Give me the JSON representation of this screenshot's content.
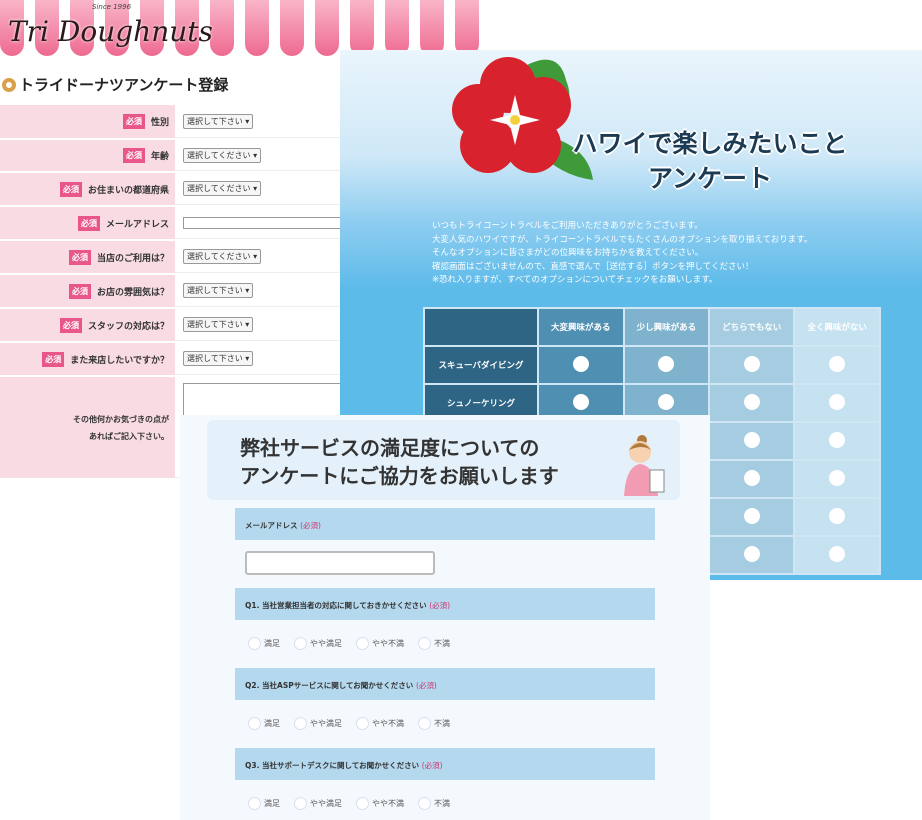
{
  "doughnut": {
    "logo": "Tri Doughnuts",
    "since": "Since 1996",
    "title": "トライドーナツアンケート登録",
    "required": "必須",
    "rows": [
      {
        "label": "性別",
        "value": "選択して下さい"
      },
      {
        "label": "年齢",
        "value": "選択してください"
      },
      {
        "label": "お住まいの都道府県",
        "value": "選択してください"
      },
      {
        "label": "メールアドレス",
        "value": ""
      },
      {
        "label": "当店のご利用は？",
        "value": "選択してください"
      },
      {
        "label": "お店の雰囲気は？",
        "value": "選択して下さい"
      },
      {
        "label": "スタッフの対応は？",
        "value": "選択して下さい"
      },
      {
        "label": "また来店したいですか？",
        "value": "選択して下さい"
      }
    ],
    "comment_label_1": "その他何かお気づきの点が",
    "comment_label_2": "あればご記入下さい。"
  },
  "hawaii": {
    "title_1": "ハワイで楽しみたいこと",
    "title_2": "アンケート",
    "intro": [
      "いつもトライコーントラベルをご利用いただきありがとうございます。",
      "大変人気のハワイですが、トライコーントラベルでもたくさんのオプションを取り揃えております。",
      "そんなオプションに皆さまがどの位興味をお持ちかを教えてください。",
      "確認画面はございませんので、直感で選んで［送信する］ボタンを押してください！",
      "※恐れ入りますが、すべてのオプションについてチェックをお願いします。"
    ],
    "columns": [
      "大変興味がある",
      "少し興味がある",
      "どちらでもない",
      "全く興味がない"
    ],
    "rows": [
      "スキューバダイビング",
      "シュノーケリング",
      "",
      "",
      "",
      ""
    ]
  },
  "satisfaction": {
    "title_1": "弊社サービスの満足度についての",
    "title_2": "アンケートにご協力をお願いします",
    "required": "(必須)",
    "email_label": "メールアドレス",
    "questions": [
      "Q1. 当社営業担当者の対応に関しておきかせください",
      "Q2. 当社ASPサービスに関してお聞かせください",
      "Q3. 当社サポートデスクに関してお聞かせください"
    ],
    "options": [
      "満足",
      "やや満足",
      "やや不満",
      "不満"
    ]
  }
}
